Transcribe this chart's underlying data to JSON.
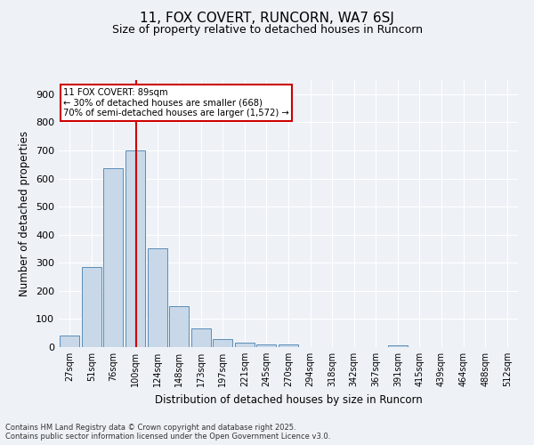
{
  "title": "11, FOX COVERT, RUNCORN, WA7 6SJ",
  "subtitle": "Size of property relative to detached houses in Runcorn",
  "xlabel": "Distribution of detached houses by size in Runcorn",
  "ylabel": "Number of detached properties",
  "categories": [
    "27sqm",
    "51sqm",
    "76sqm",
    "100sqm",
    "124sqm",
    "148sqm",
    "173sqm",
    "197sqm",
    "221sqm",
    "245sqm",
    "270sqm",
    "294sqm",
    "318sqm",
    "342sqm",
    "367sqm",
    "391sqm",
    "415sqm",
    "439sqm",
    "464sqm",
    "488sqm",
    "512sqm"
  ],
  "values": [
    40,
    285,
    635,
    700,
    350,
    145,
    65,
    28,
    15,
    10,
    8,
    0,
    0,
    0,
    0,
    5,
    0,
    0,
    0,
    0,
    0
  ],
  "bar_color": "#c8d8e8",
  "bar_edge_color": "#5b8db8",
  "red_line_color": "#cc0000",
  "annotation_line1": "11 FOX COVERT: 89sqm",
  "annotation_line2": "← 30% of detached houses are smaller (668)",
  "annotation_line3": "70% of semi-detached houses are larger (1,572) →",
  "annotation_box_color": "#cc0000",
  "annotation_bg": "#ffffff",
  "ylim": [
    0,
    950
  ],
  "yticks": [
    0,
    100,
    200,
    300,
    400,
    500,
    600,
    700,
    800,
    900
  ],
  "background_color": "#eef2f7",
  "grid_color": "#ffffff",
  "footer_line1": "Contains HM Land Registry data © Crown copyright and database right 2025.",
  "footer_line2": "Contains public sector information licensed under the Open Government Licence v3.0."
}
